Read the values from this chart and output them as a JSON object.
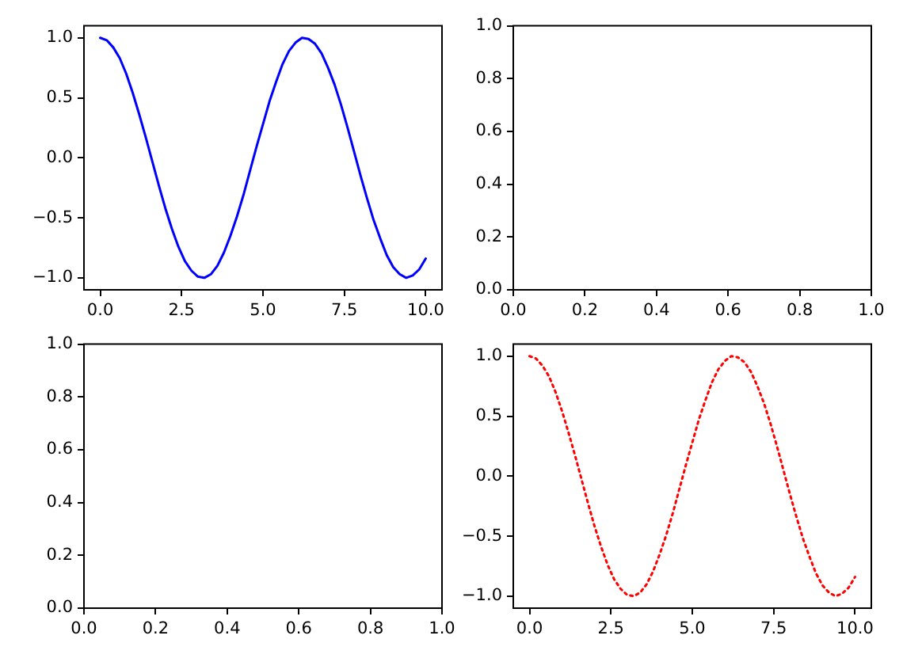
{
  "chart_data": [
    {
      "type": "line",
      "x": [
        0,
        0.2,
        0.4,
        0.6,
        0.8,
        1,
        1.2,
        1.4,
        1.6,
        1.8,
        2,
        2.2,
        2.4,
        2.6,
        2.8,
        3,
        3.2,
        3.4,
        3.6,
        3.8,
        4,
        4.2,
        4.4,
        4.6,
        4.8,
        5,
        5.2,
        5.4,
        5.6,
        5.8,
        6,
        6.2,
        6.4,
        6.6,
        6.8,
        7,
        7.2,
        7.4,
        7.6,
        7.8,
        8,
        8.2,
        8.4,
        8.6,
        8.8,
        9,
        9.2,
        9.4,
        9.6,
        9.8,
        10
      ],
      "series": [
        {
          "color": "#0000ff",
          "line_style": "solid",
          "values": [
            1.0,
            0.98,
            0.92,
            0.83,
            0.7,
            0.54,
            0.36,
            0.17,
            -0.03,
            -0.23,
            -0.42,
            -0.59,
            -0.74,
            -0.86,
            -0.94,
            -0.99,
            -1.0,
            -0.97,
            -0.9,
            -0.79,
            -0.65,
            -0.49,
            -0.31,
            -0.11,
            0.09,
            0.28,
            0.47,
            0.63,
            0.78,
            0.89,
            0.96,
            1.0,
            0.99,
            0.95,
            0.87,
            0.75,
            0.61,
            0.44,
            0.25,
            0.05,
            -0.15,
            -0.34,
            -0.52,
            -0.67,
            -0.81,
            -0.91,
            -0.97,
            -1.0,
            -0.98,
            -0.93,
            -0.84
          ]
        }
      ],
      "xlim": [
        -0.5,
        10.5
      ],
      "ylim": [
        -1.1,
        1.1
      ],
      "xticks": [
        {
          "value": 0,
          "label": "0.0"
        },
        {
          "value": 2.5,
          "label": "2.5"
        },
        {
          "value": 5,
          "label": "5.0"
        },
        {
          "value": 7.5,
          "label": "7.5"
        },
        {
          "value": 10,
          "label": "10.0"
        }
      ],
      "yticks": [
        {
          "value": -1,
          "label": "−1.0"
        },
        {
          "value": -0.5,
          "label": "−0.5"
        },
        {
          "value": 0,
          "label": "0.0"
        },
        {
          "value": 0.5,
          "label": "0.5"
        },
        {
          "value": 1,
          "label": "1.0"
        }
      ],
      "grid": false,
      "legend": false,
      "marker": "none"
    },
    {
      "type": "line",
      "xlim": [
        0,
        1
      ],
      "ylim": [
        0,
        1
      ],
      "xticks": [
        {
          "value": 0,
          "label": "0.0"
        },
        {
          "value": 0.2,
          "label": "0.2"
        },
        {
          "value": 0.4,
          "label": "0.4"
        },
        {
          "value": 0.6,
          "label": "0.6"
        },
        {
          "value": 0.8,
          "label": "0.8"
        },
        {
          "value": 1,
          "label": "1.0"
        }
      ],
      "yticks": [
        {
          "value": 0,
          "label": "0.0"
        },
        {
          "value": 0.2,
          "label": "0.2"
        },
        {
          "value": 0.4,
          "label": "0.4"
        },
        {
          "value": 0.6,
          "label": "0.6"
        },
        {
          "value": 0.8,
          "label": "0.8"
        },
        {
          "value": 1,
          "label": "1.0"
        }
      ],
      "grid": false,
      "legend": false
    },
    {
      "type": "line",
      "xlim": [
        0,
        1
      ],
      "ylim": [
        0,
        1
      ],
      "xticks": [
        {
          "value": 0,
          "label": "0.0"
        },
        {
          "value": 0.2,
          "label": "0.2"
        },
        {
          "value": 0.4,
          "label": "0.4"
        },
        {
          "value": 0.6,
          "label": "0.6"
        },
        {
          "value": 0.8,
          "label": "0.8"
        },
        {
          "value": 1,
          "label": "1.0"
        }
      ],
      "yticks": [
        {
          "value": 0,
          "label": "0.0"
        },
        {
          "value": 0.2,
          "label": "0.2"
        },
        {
          "value": 0.4,
          "label": "0.4"
        },
        {
          "value": 0.6,
          "label": "0.6"
        },
        {
          "value": 0.8,
          "label": "0.8"
        },
        {
          "value": 1,
          "label": "1.0"
        }
      ],
      "grid": false,
      "legend": false
    },
    {
      "type": "line",
      "x": [
        0,
        0.2,
        0.4,
        0.6,
        0.8,
        1,
        1.2,
        1.4,
        1.6,
        1.8,
        2,
        2.2,
        2.4,
        2.6,
        2.8,
        3,
        3.2,
        3.4,
        3.6,
        3.8,
        4,
        4.2,
        4.4,
        4.6,
        4.8,
        5,
        5.2,
        5.4,
        5.6,
        5.8,
        6,
        6.2,
        6.4,
        6.6,
        6.8,
        7,
        7.2,
        7.4,
        7.6,
        7.8,
        8,
        8.2,
        8.4,
        8.6,
        8.8,
        9,
        9.2,
        9.4,
        9.6,
        9.8,
        10
      ],
      "series": [
        {
          "color": "#ff0000",
          "line_style": "dotted",
          "values": [
            1.0,
            0.98,
            0.92,
            0.83,
            0.7,
            0.54,
            0.36,
            0.17,
            -0.03,
            -0.23,
            -0.42,
            -0.59,
            -0.74,
            -0.86,
            -0.94,
            -0.99,
            -1.0,
            -0.97,
            -0.9,
            -0.79,
            -0.65,
            -0.49,
            -0.31,
            -0.11,
            0.09,
            0.28,
            0.47,
            0.63,
            0.78,
            0.89,
            0.96,
            1.0,
            0.99,
            0.95,
            0.87,
            0.75,
            0.61,
            0.44,
            0.25,
            0.05,
            -0.15,
            -0.34,
            -0.52,
            -0.67,
            -0.81,
            -0.91,
            -0.97,
            -1.0,
            -0.98,
            -0.93,
            -0.84
          ]
        }
      ],
      "xlim": [
        -0.5,
        10.5
      ],
      "ylim": [
        -1.1,
        1.1
      ],
      "xticks": [
        {
          "value": 0,
          "label": "0.0"
        },
        {
          "value": 2.5,
          "label": "2.5"
        },
        {
          "value": 5,
          "label": "5.0"
        },
        {
          "value": 7.5,
          "label": "7.5"
        },
        {
          "value": 10,
          "label": "10.0"
        }
      ],
      "yticks": [
        {
          "value": -1,
          "label": "−1.0"
        },
        {
          "value": -0.5,
          "label": "−0.5"
        },
        {
          "value": 0,
          "label": "0.0"
        },
        {
          "value": 0.5,
          "label": "0.5"
        },
        {
          "value": 1,
          "label": "1.0"
        }
      ],
      "grid": false,
      "legend": false,
      "marker": "none"
    }
  ]
}
